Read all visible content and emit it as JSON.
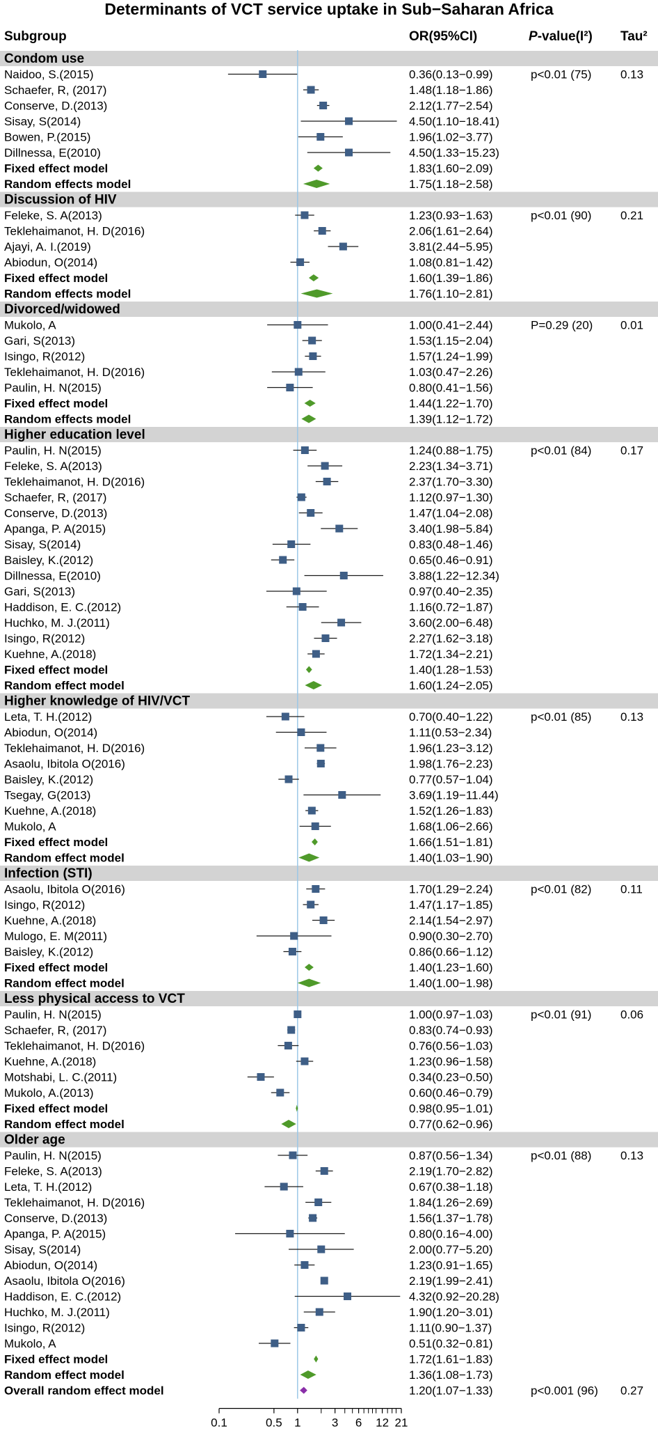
{
  "chart_data": {
    "type": "forest",
    "title": "Determinants of VCT service uptake in Sub−Saharan Africa",
    "columns": {
      "subgroup": "Subgroup",
      "or": "OR(95%CI)",
      "pvalue_italic": "P",
      "pvalue_rest": "-value(I²)",
      "tau": "Tau²"
    },
    "x_scale": "log",
    "xlim": [
      0.1,
      21
    ],
    "reference_line": 1,
    "ticks": [
      {
        "v": 0.1,
        "label": "0.1"
      },
      {
        "v": 0.5,
        "label": "0.5"
      },
      {
        "v": 1,
        "label": "1"
      },
      {
        "v": 3,
        "label": "3"
      },
      {
        "v": 6,
        "label": "6"
      },
      {
        "v": 12,
        "label": "12"
      },
      {
        "v": 21,
        "label": "21"
      }
    ],
    "minor_ticks": [
      2,
      4,
      5,
      7,
      8,
      9,
      10,
      14,
      16,
      18
    ],
    "groups": [
      {
        "name": "Condom use",
        "p": "p<0.01 (75)",
        "tau": "0.13",
        "studies": [
          {
            "label": "Naidoo, S.(2015)",
            "or": 0.36,
            "lo": 0.13,
            "hi": 0.99,
            "text": "0.36(0.13−0.99)"
          },
          {
            "label": "Schaefer, R, (2017)",
            "or": 1.48,
            "lo": 1.18,
            "hi": 1.86,
            "text": "1.48(1.18−1.86)"
          },
          {
            "label": "Conserve, D.(2013)",
            "or": 2.12,
            "lo": 1.77,
            "hi": 2.54,
            "text": "2.12(1.77−2.54)"
          },
          {
            "label": "Sisay, S(2014)",
            "or": 4.5,
            "lo": 1.1,
            "hi": 18.41,
            "text": "4.50(1.10−18.41)"
          },
          {
            "label": "Bowen, P.(2015)",
            "or": 1.96,
            "lo": 1.02,
            "hi": 3.77,
            "text": "1.96(1.02−3.77)"
          },
          {
            "label": "Dillnessa, E(2010)",
            "or": 4.5,
            "lo": 1.33,
            "hi": 15.23,
            "text": "4.50(1.33−15.23)"
          }
        ],
        "fixed": {
          "label": "Fixed effect model",
          "or": 1.83,
          "lo": 1.6,
          "hi": 2.09,
          "text": "1.83(1.60−2.09)"
        },
        "random": {
          "label": "Random effects model",
          "or": 1.75,
          "lo": 1.18,
          "hi": 2.58,
          "text": "1.75(1.18−2.58)"
        }
      },
      {
        "name": "Discussion of HIV",
        "p": "p<0.01 (90)",
        "tau": "0.21",
        "studies": [
          {
            "label": "Feleke, S. A(2013)",
            "or": 1.23,
            "lo": 0.93,
            "hi": 1.63,
            "text": "1.23(0.93−1.63)"
          },
          {
            "label": "Teklehaimanot, H. D(2016)",
            "or": 2.06,
            "lo": 1.61,
            "hi": 2.64,
            "text": "2.06(1.61−2.64)"
          },
          {
            "label": "Ajayi, A. I.(2019)",
            "or": 3.81,
            "lo": 2.44,
            "hi": 5.95,
            "text": "3.81(2.44−5.95)"
          },
          {
            "label": "Abiodun, O(2014)",
            "or": 1.08,
            "lo": 0.81,
            "hi": 1.42,
            "text": "1.08(0.81−1.42)"
          }
        ],
        "fixed": {
          "label": "Fixed effect model",
          "or": 1.6,
          "lo": 1.39,
          "hi": 1.86,
          "text": "1.60(1.39−1.86)"
        },
        "random": {
          "label": "Random effects model",
          "or": 1.76,
          "lo": 1.1,
          "hi": 2.81,
          "text": "1.76(1.10−2.81)"
        }
      },
      {
        "name": "Divorced/widowed",
        "p": "P=0.29 (20)",
        "tau": "0.01",
        "studies": [
          {
            "label": "Mukolo, A",
            "or": 1.0,
            "lo": 0.41,
            "hi": 2.44,
            "text": "1.00(0.41−2.44)"
          },
          {
            "label": "Gari, S(2013)",
            "or": 1.53,
            "lo": 1.15,
            "hi": 2.04,
            "text": "1.53(1.15−2.04)"
          },
          {
            "label": "Isingo, R(2012)",
            "or": 1.57,
            "lo": 1.24,
            "hi": 1.99,
            "text": "1.57(1.24−1.99)"
          },
          {
            "label": "Teklehaimanot, H. D(2016)",
            "or": 1.03,
            "lo": 0.47,
            "hi": 2.26,
            "text": "1.03(0.47−2.26)"
          },
          {
            "label": "Paulin, H. N(2015)",
            "or": 0.8,
            "lo": 0.41,
            "hi": 1.56,
            "text": "0.80(0.41−1.56)"
          }
        ],
        "fixed": {
          "label": "Fixed effect model",
          "or": 1.44,
          "lo": 1.22,
          "hi": 1.7,
          "text": "1.44(1.22−1.70)"
        },
        "random": {
          "label": "Random effects model",
          "or": 1.39,
          "lo": 1.12,
          "hi": 1.72,
          "text": "1.39(1.12−1.72)"
        }
      },
      {
        "name": "Higher education level",
        "p": "p<0.01 (84)",
        "tau": "0.17",
        "studies": [
          {
            "label": "Paulin, H. N(2015)",
            "or": 1.24,
            "lo": 0.88,
            "hi": 1.75,
            "text": "1.24(0.88−1.75)"
          },
          {
            "label": "Feleke, S. A(2013)",
            "or": 2.23,
            "lo": 1.34,
            "hi": 3.71,
            "text": "2.23(1.34−3.71)"
          },
          {
            "label": "Teklehaimanot, H. D(2016)",
            "or": 2.37,
            "lo": 1.7,
            "hi": 3.3,
            "text": "2.37(1.70−3.30)"
          },
          {
            "label": "Schaefer, R, (2017)",
            "or": 1.12,
            "lo": 0.97,
            "hi": 1.3,
            "text": "1.12(0.97−1.30)"
          },
          {
            "label": "Conserve, D.(2013)",
            "or": 1.47,
            "lo": 1.04,
            "hi": 2.08,
            "text": "1.47(1.04−2.08)"
          },
          {
            "label": "Apanga, P. A(2015)",
            "or": 3.4,
            "lo": 1.98,
            "hi": 5.84,
            "text": "3.40(1.98−5.84)"
          },
          {
            "label": "Sisay, S(2014)",
            "or": 0.83,
            "lo": 0.48,
            "hi": 1.46,
            "text": "0.83(0.48−1.46)"
          },
          {
            "label": "Baisley, K.(2012)",
            "or": 0.65,
            "lo": 0.46,
            "hi": 0.91,
            "text": "0.65(0.46−0.91)"
          },
          {
            "label": "Dillnessa, E(2010)",
            "or": 3.88,
            "lo": 1.22,
            "hi": 12.34,
            "text": "3.88(1.22−12.34)"
          },
          {
            "label": "Gari, S(2013)",
            "or": 0.97,
            "lo": 0.4,
            "hi": 2.35,
            "text": "0.97(0.40−2.35)"
          },
          {
            "label": "Haddison, E. C.(2012)",
            "or": 1.16,
            "lo": 0.72,
            "hi": 1.87,
            "text": "1.16(0.72−1.87)"
          },
          {
            "label": "Huchko, M. J.(2011)",
            "or": 3.6,
            "lo": 2.0,
            "hi": 6.48,
            "text": "3.60(2.00−6.48)"
          },
          {
            "label": "Isingo, R(2012)",
            "or": 2.27,
            "lo": 1.62,
            "hi": 3.18,
            "text": "2.27(1.62−3.18)"
          },
          {
            "label": "Kuehne, A.(2018)",
            "or": 1.72,
            "lo": 1.34,
            "hi": 2.21,
            "text": "1.72(1.34−2.21)"
          }
        ],
        "fixed": {
          "label": "Fixed effect model",
          "or": 1.4,
          "lo": 1.28,
          "hi": 1.53,
          "text": "1.40(1.28−1.53)"
        },
        "random": {
          "label": "Random effect model",
          "or": 1.6,
          "lo": 1.24,
          "hi": 2.05,
          "text": "1.60(1.24−2.05)"
        }
      },
      {
        "name": "Higher knowledge of HIV/VCT",
        "p": "p<0.01 (85)",
        "tau": "0.13",
        "studies": [
          {
            "label": "Leta, T. H.(2012)",
            "or": 0.7,
            "lo": 0.4,
            "hi": 1.22,
            "text": "0.70(0.40−1.22)"
          },
          {
            "label": "Abiodun, O(2014)",
            "or": 1.11,
            "lo": 0.53,
            "hi": 2.34,
            "text": "1.11(0.53−2.34)"
          },
          {
            "label": "Teklehaimanot, H. D(2016)",
            "or": 1.96,
            "lo": 1.23,
            "hi": 3.12,
            "text": "1.96(1.23−3.12)"
          },
          {
            "label": "Asaolu, Ibitola O(2016)",
            "or": 1.98,
            "lo": 1.76,
            "hi": 2.23,
            "text": "1.98(1.76−2.23)"
          },
          {
            "label": "Baisley, K.(2012)",
            "or": 0.77,
            "lo": 0.57,
            "hi": 1.04,
            "text": "0.77(0.57−1.04)"
          },
          {
            "label": "Tsegay, G(2013)",
            "or": 3.69,
            "lo": 1.19,
            "hi": 11.44,
            "text": "3.69(1.19−11.44)"
          },
          {
            "label": "Kuehne, A.(2018)",
            "or": 1.52,
            "lo": 1.26,
            "hi": 1.83,
            "text": "1.52(1.26−1.83)"
          },
          {
            "label": "Mukolo, A",
            "or": 1.68,
            "lo": 1.06,
            "hi": 2.66,
            "text": "1.68(1.06−2.66)"
          }
        ],
        "fixed": {
          "label": "Fixed effect model",
          "or": 1.66,
          "lo": 1.51,
          "hi": 1.81,
          "text": "1.66(1.51−1.81)"
        },
        "random": {
          "label": "Random effect model",
          "or": 1.4,
          "lo": 1.03,
          "hi": 1.9,
          "text": "1.40(1.03−1.90)"
        }
      },
      {
        "name": "Infection (STI)",
        "p": "p<0.01 (82)",
        "tau": "0.11",
        "studies": [
          {
            "label": "Asaolu, Ibitola O(2016)",
            "or": 1.7,
            "lo": 1.29,
            "hi": 2.24,
            "text": "1.70(1.29−2.24)"
          },
          {
            "label": "Isingo, R(2012)",
            "or": 1.47,
            "lo": 1.17,
            "hi": 1.85,
            "text": "1.47(1.17−1.85)"
          },
          {
            "label": "Kuehne, A.(2018)",
            "or": 2.14,
            "lo": 1.54,
            "hi": 2.97,
            "text": "2.14(1.54−2.97)"
          },
          {
            "label": "Mulogo, E. M(2011)",
            "or": 0.9,
            "lo": 0.3,
            "hi": 2.7,
            "text": "0.90(0.30−2.70)"
          },
          {
            "label": "Baisley, K.(2012)",
            "or": 0.86,
            "lo": 0.66,
            "hi": 1.12,
            "text": "0.86(0.66−1.12)"
          }
        ],
        "fixed": {
          "label": "Fixed effect model",
          "or": 1.4,
          "lo": 1.23,
          "hi": 1.6,
          "text": "1.40(1.23−1.60)"
        },
        "random": {
          "label": "Random effect model",
          "or": 1.4,
          "lo": 1.0,
          "hi": 1.98,
          "text": "1.40(1.00−1.98)"
        }
      },
      {
        "name": "Less physical access to VCT",
        "p": "p<0.01 (91)",
        "tau": "0.06",
        "studies": [
          {
            "label": "Paulin, H. N(2015)",
            "or": 1.0,
            "lo": 0.97,
            "hi": 1.03,
            "text": "1.00(0.97−1.03)"
          },
          {
            "label": "Schaefer, R, (2017)",
            "or": 0.83,
            "lo": 0.74,
            "hi": 0.93,
            "text": "0.83(0.74−0.93)"
          },
          {
            "label": "Teklehaimanot, H. D(2016)",
            "or": 0.76,
            "lo": 0.56,
            "hi": 1.03,
            "text": "0.76(0.56−1.03)"
          },
          {
            "label": "Kuehne, A.(2018)",
            "or": 1.23,
            "lo": 0.96,
            "hi": 1.58,
            "text": "1.23(0.96−1.58)"
          },
          {
            "label": "Motshabi, L. C.(2011)",
            "or": 0.34,
            "lo": 0.23,
            "hi": 0.5,
            "text": "0.34(0.23−0.50)"
          },
          {
            "label": "Mukolo, A.(2013)",
            "or": 0.6,
            "lo": 0.46,
            "hi": 0.79,
            "text": "0.60(0.46−0.79)"
          }
        ],
        "fixed": {
          "label": "Fixed effect model",
          "or": 0.98,
          "lo": 0.95,
          "hi": 1.01,
          "text": "0.98(0.95−1.01)"
        },
        "random": {
          "label": "Random effect model",
          "or": 0.77,
          "lo": 0.62,
          "hi": 0.96,
          "text": "0.77(0.62−0.96)"
        }
      },
      {
        "name": "Older age",
        "p": "p<0.01 (88)",
        "tau": "0.13",
        "studies": [
          {
            "label": "Paulin, H. N(2015)",
            "or": 0.87,
            "lo": 0.56,
            "hi": 1.34,
            "text": "0.87(0.56−1.34)"
          },
          {
            "label": "Feleke, S. A(2013)",
            "or": 2.19,
            "lo": 1.7,
            "hi": 2.82,
            "text": "2.19(1.70−2.82)"
          },
          {
            "label": "Leta, T. H.(2012)",
            "or": 0.67,
            "lo": 0.38,
            "hi": 1.18,
            "text": "0.67(0.38−1.18)"
          },
          {
            "label": "Teklehaimanot, H. D(2016)",
            "or": 1.84,
            "lo": 1.26,
            "hi": 2.69,
            "text": "1.84(1.26−2.69)"
          },
          {
            "label": "Conserve, D.(2013)",
            "or": 1.56,
            "lo": 1.37,
            "hi": 1.78,
            "text": "1.56(1.37−1.78)"
          },
          {
            "label": "Apanga, P. A(2015)",
            "or": 0.8,
            "lo": 0.16,
            "hi": 4.0,
            "text": "0.80(0.16−4.00)"
          },
          {
            "label": "Sisay, S(2014)",
            "or": 2.0,
            "lo": 0.77,
            "hi": 5.2,
            "text": "2.00(0.77−5.20)"
          },
          {
            "label": "Abiodun, O(2014)",
            "or": 1.23,
            "lo": 0.91,
            "hi": 1.65,
            "text": "1.23(0.91−1.65)"
          },
          {
            "label": "Asaolu, Ibitola O(2016)",
            "or": 2.19,
            "lo": 1.99,
            "hi": 2.41,
            "text": "2.19(1.99−2.41)"
          },
          {
            "label": "Haddison, E. C.(2012)",
            "or": 4.32,
            "lo": 0.92,
            "hi": 20.28,
            "text": "4.32(0.92−20.28)"
          },
          {
            "label": "Huchko, M. J.(2011)",
            "or": 1.9,
            "lo": 1.2,
            "hi": 3.01,
            "text": "1.90(1.20−3.01)"
          },
          {
            "label": "Isingo, R(2012)",
            "or": 1.11,
            "lo": 0.9,
            "hi": 1.37,
            "text": "1.11(0.90−1.37)"
          },
          {
            "label": "Mukolo, A",
            "or": 0.51,
            "lo": 0.32,
            "hi": 0.81,
            "text": "0.51(0.32−0.81)"
          }
        ],
        "fixed": {
          "label": "Fixed effect model",
          "or": 1.72,
          "lo": 1.61,
          "hi": 1.83,
          "text": "1.72(1.61−1.83)"
        },
        "random": {
          "label": "Random effect model",
          "or": 1.36,
          "lo": 1.08,
          "hi": 1.73,
          "text": "1.36(1.08−1.73)"
        }
      }
    ],
    "overall": {
      "label": "Overall random effect model",
      "or": 1.2,
      "lo": 1.07,
      "hi": 1.33,
      "text": "1.20(1.07−1.33)",
      "p": "p<0.001 (96)",
      "tau": "0.27"
    },
    "colors": {
      "square": "#3e5e86",
      "diamond": "#4f9a2a",
      "overall": "#8a2ea8",
      "ref_line": "#9bc7e6",
      "band": "#d3d3d3",
      "ci": "#1a1a1a"
    }
  }
}
